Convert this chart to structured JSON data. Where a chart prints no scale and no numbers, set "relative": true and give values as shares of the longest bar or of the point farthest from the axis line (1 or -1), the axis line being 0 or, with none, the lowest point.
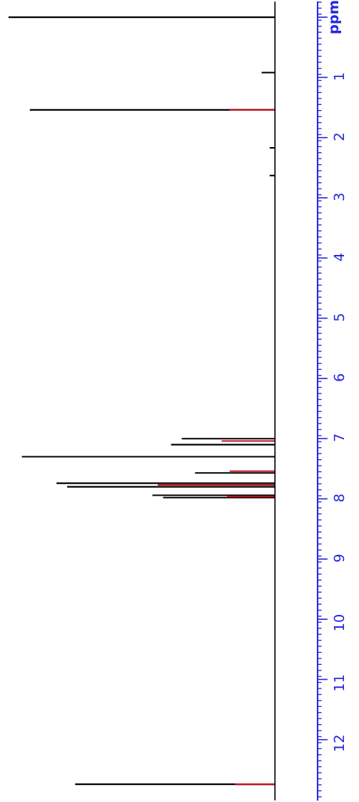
{
  "chart_data": {
    "type": "bar",
    "orientation": "horizontal",
    "relative": true,
    "ylim": [
      13.0,
      -0.25
    ],
    "ylabel": "ppm",
    "yticks": [
      {
        "value": 0,
        "label": null
      },
      1,
      2,
      3,
      4,
      5,
      6,
      7,
      8,
      9,
      10,
      11,
      12
    ],
    "series": [
      {
        "color": "#000000",
        "x": [
          0,
          0.92,
          1.54,
          2.17,
          2.63,
          7.0,
          7.1,
          7.3,
          7.57,
          7.74,
          7.8,
          7.94,
          7.98,
          12.74
        ],
        "values": [
          1.0,
          0.05,
          0.92,
          0.02,
          0.02,
          0.35,
          0.39,
          0.95,
          0.3,
          0.82,
          0.78,
          0.46,
          0.42,
          0.75
        ]
      },
      {
        "color": "#c0101a",
        "x": [
          1.54,
          7.04,
          7.54,
          7.77,
          7.96,
          12.74
        ],
        "values": [
          0.17,
          0.2,
          0.17,
          0.44,
          0.18,
          0.15
        ]
      }
    ]
  }
}
